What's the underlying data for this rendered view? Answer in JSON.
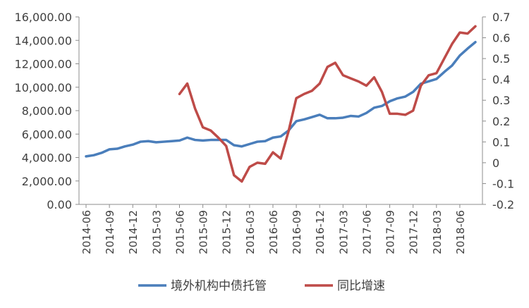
{
  "chart_data": {
    "type": "line",
    "title": "",
    "xlabel": "",
    "ylabel_left": "",
    "ylabel_right": "",
    "categories": [
      "2014-06",
      "2014-07",
      "2014-08",
      "2014-09",
      "2014-10",
      "2014-11",
      "2014-12",
      "2015-01",
      "2015-02",
      "2015-03",
      "2015-04",
      "2015-05",
      "2015-06",
      "2015-07",
      "2015-08",
      "2015-09",
      "2015-10",
      "2015-11",
      "2015-12",
      "2016-01",
      "2016-02",
      "2016-03",
      "2016-04",
      "2016-05",
      "2016-06",
      "2016-07",
      "2016-08",
      "2016-09",
      "2016-10",
      "2016-11",
      "2016-12",
      "2017-01",
      "2017-02",
      "2017-03",
      "2017-04",
      "2017-05",
      "2017-06",
      "2017-07",
      "2017-08",
      "2017-09",
      "2017-10",
      "2017-11",
      "2017-12",
      "2018-01",
      "2018-02",
      "2018-03",
      "2018-04",
      "2018-05",
      "2018-06",
      "2018-07",
      "2018-08"
    ],
    "x_tick_labels": [
      "2014-06",
      "2014-09",
      "2014-12",
      "2015-03",
      "2015-06",
      "2015-09",
      "2015-12",
      "2016-03",
      "2016-06",
      "2016-09",
      "2016-12",
      "2017-03",
      "2017-06",
      "2017-09",
      "2017-12",
      "2018-03",
      "2018-06"
    ],
    "y_left": {
      "lim": [
        0,
        16000
      ],
      "ticks": [
        "0.00",
        "2,000.00",
        "4,000.00",
        "6,000.00",
        "8,000.00",
        "10,000.00",
        "12,000.00",
        "14,000.00",
        "16,000.00"
      ]
    },
    "y_right": {
      "lim": [
        -0.2,
        0.7
      ],
      "ticks": [
        "-0.2",
        "-0.1",
        "0",
        "0.1",
        "0.2",
        "0.3",
        "0.4",
        "0.5",
        "0.6",
        "0.7"
      ]
    },
    "series": [
      {
        "name": "境外机构中债托管",
        "axis": "left",
        "color": "#4a7ebb",
        "values": [
          4100,
          4200,
          4400,
          4700,
          4750,
          4950,
          5100,
          5350,
          5400,
          5300,
          5350,
          5400,
          5450,
          5700,
          5500,
          5450,
          5500,
          5500,
          5500,
          5050,
          4950,
          5150,
          5350,
          5400,
          5700,
          5800,
          6300,
          7100,
          7250,
          7450,
          7650,
          7350,
          7350,
          7400,
          7550,
          7500,
          7800,
          8250,
          8400,
          8800,
          9050,
          9200,
          9600,
          10300,
          10500,
          10700,
          11300,
          11850,
          12700,
          13300,
          13850
        ]
      },
      {
        "name": "同比增速",
        "axis": "right",
        "color": "#be4b48",
        "values": [
          null,
          null,
          null,
          null,
          null,
          null,
          null,
          null,
          null,
          null,
          null,
          null,
          0.33,
          0.38,
          0.26,
          0.17,
          0.155,
          0.12,
          0.08,
          -0.06,
          -0.09,
          -0.02,
          0.0,
          -0.005,
          0.05,
          0.02,
          0.15,
          0.31,
          0.33,
          0.345,
          0.38,
          0.46,
          0.48,
          0.42,
          0.405,
          0.39,
          0.37,
          0.41,
          0.34,
          0.235,
          0.235,
          0.23,
          0.25,
          0.37,
          0.42,
          0.43,
          0.5,
          0.57,
          0.625,
          0.62,
          0.655
        ]
      }
    ],
    "legend_position": "bottom",
    "grid": false
  }
}
